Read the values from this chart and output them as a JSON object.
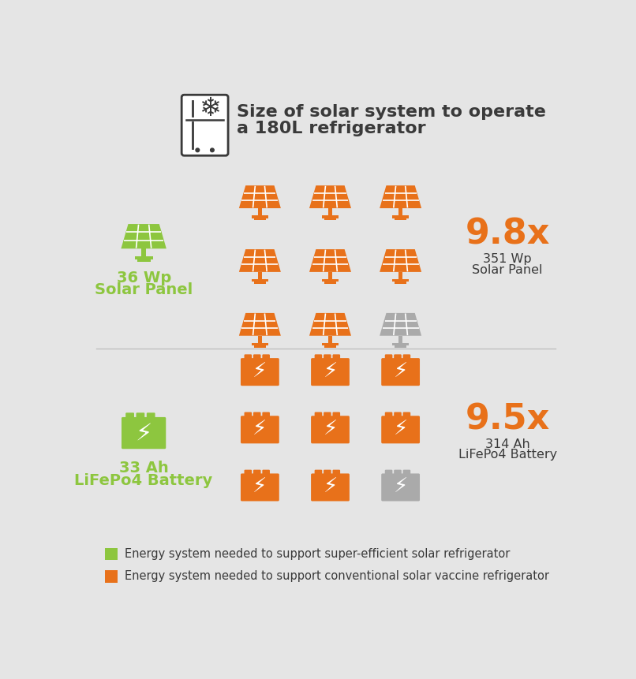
{
  "bg_color": "#e5e5e5",
  "title_line1": "Size of solar system to operate",
  "title_line2": "a 180L refrigerator",
  "green_color": "#8dc63f",
  "orange_color": "#e8711a",
  "gray_color": "#aaaaaa",
  "dark_color": "#3a3a3a",
  "solar_section": {
    "left_label_line1": "36 Wp",
    "left_label_line2": "Solar Panel",
    "multiplier": "9.8x",
    "right_label_line1": "351 Wp",
    "right_label_line2": "Solar Panel"
  },
  "battery_section": {
    "left_label_line1": "33 Ah",
    "left_label_line2": "LiFePo4 Battery",
    "multiplier": "9.5x",
    "right_label_line1": "314 Ah",
    "right_label_line2": "LiFePo4 Battery"
  },
  "legend_green_text": "Energy system needed to support super-efficient solar refrigerator",
  "legend_orange_text": "Energy system needed to support conventional solar vaccine refrigerator"
}
